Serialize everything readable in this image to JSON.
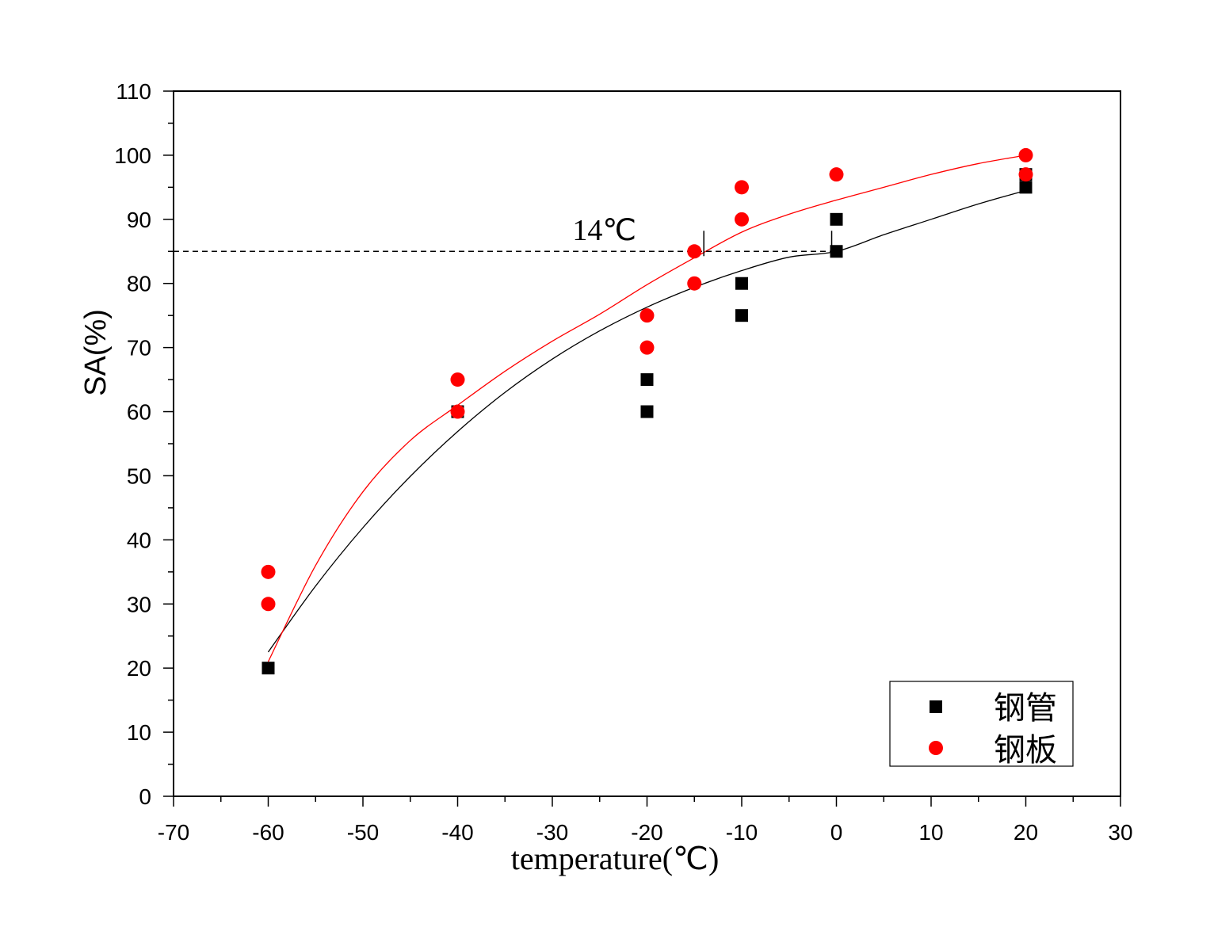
{
  "chart_data": {
    "type": "scatter",
    "xlabel": "temperature(℃)",
    "ylabel": "SA(%)",
    "xlim": [
      -70,
      30
    ],
    "ylim": [
      0,
      110
    ],
    "x_ticks": [
      -70,
      -60,
      -50,
      -40,
      -30,
      -20,
      -10,
      0,
      10,
      20,
      30
    ],
    "y_ticks": [
      0,
      10,
      20,
      30,
      40,
      50,
      60,
      70,
      80,
      90,
      100,
      110
    ],
    "series": [
      {
        "name": "钢管",
        "marker": "square",
        "color": "#000000",
        "points": [
          [
            -60,
            20
          ],
          [
            -40,
            60
          ],
          [
            -20,
            65
          ],
          [
            -20,
            60
          ],
          [
            -10,
            80
          ],
          [
            -10,
            75
          ],
          [
            0,
            90
          ],
          [
            0,
            85
          ],
          [
            20,
            95
          ],
          [
            20,
            97
          ]
        ],
        "fit_curve": [
          [
            -60,
            22.5
          ],
          [
            -55,
            32.8
          ],
          [
            -50,
            41.9
          ],
          [
            -45,
            49.9
          ],
          [
            -40,
            56.9
          ],
          [
            -35,
            63.0
          ],
          [
            -30,
            68.2
          ],
          [
            -25,
            72.6
          ],
          [
            -20,
            76.3
          ],
          [
            -15,
            79.4
          ],
          [
            -10,
            82.0
          ],
          [
            -5,
            84.1
          ],
          [
            0,
            85.0
          ],
          [
            5,
            87.6
          ],
          [
            10,
            90.0
          ],
          [
            15,
            92.4
          ],
          [
            20,
            94.5
          ]
        ]
      },
      {
        "name": "钢板",
        "marker": "circle",
        "color": "#ff0000",
        "points": [
          [
            -60,
            35
          ],
          [
            -60,
            30
          ],
          [
            -40,
            65
          ],
          [
            -40,
            60
          ],
          [
            -20,
            75
          ],
          [
            -20,
            70
          ],
          [
            -15,
            85
          ],
          [
            -15,
            80
          ],
          [
            -10,
            95
          ],
          [
            -10,
            90
          ],
          [
            0,
            97
          ],
          [
            20,
            100
          ],
          [
            20,
            97
          ]
        ],
        "fit_curve": [
          [
            -60,
            21.0
          ],
          [
            -55,
            36.0
          ],
          [
            -50,
            47.5
          ],
          [
            -45,
            55.5
          ],
          [
            -40,
            61.0
          ],
          [
            -35,
            66.3
          ],
          [
            -30,
            71.0
          ],
          [
            -25,
            75.2
          ],
          [
            -20,
            79.8
          ],
          [
            -15,
            84.0
          ],
          [
            -10,
            88.0
          ],
          [
            -5,
            90.8
          ],
          [
            0,
            93.0
          ],
          [
            5,
            95.0
          ],
          [
            10,
            97.0
          ],
          [
            15,
            98.7
          ],
          [
            20,
            100.0
          ]
        ]
      }
    ],
    "reference_line": {
      "y": 85,
      "x_from": -70,
      "x_to": 0,
      "style": "dashed"
    },
    "markers_at_reference": [
      -14,
      -0.5
    ],
    "annotation": {
      "text": "14℃",
      "x": -24.5,
      "y": 88.5
    },
    "legend": {
      "placement": "bottom-right",
      "entries": [
        "钢管",
        "钢板"
      ]
    },
    "grid": false
  }
}
